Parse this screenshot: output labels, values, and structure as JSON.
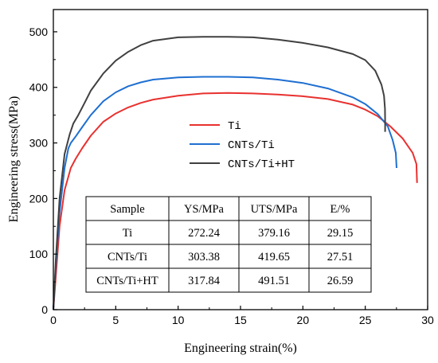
{
  "chart_data": {
    "type": "line",
    "xlabel": "Engineering strain(%)",
    "ylabel": "Engineering stress(MPa)",
    "xlim": [
      0,
      30
    ],
    "ylim": [
      0,
      540
    ],
    "xticks": [
      0,
      5,
      10,
      15,
      20,
      25,
      30
    ],
    "yticks": [
      0,
      100,
      200,
      300,
      400,
      500
    ],
    "grid": false,
    "legend_position": "center-right",
    "series": [
      {
        "name": "Ti",
        "color": "#e8312f",
        "x": [
          0,
          0.2,
          0.5,
          0.9,
          1.4,
          1.8,
          2.3,
          3,
          4,
          5,
          6,
          7,
          8,
          10,
          12,
          14,
          16,
          18,
          20,
          22,
          24,
          25,
          26,
          27,
          28,
          28.8,
          29.1,
          29.15
        ],
        "y": [
          0,
          60,
          150,
          215,
          255,
          272,
          290,
          313,
          338,
          353,
          364,
          372,
          378,
          385,
          389,
          390,
          389,
          387,
          384,
          379,
          369,
          360,
          348,
          330,
          308,
          282,
          262,
          228
        ]
      },
      {
        "name": "CNTs/Ti",
        "color": "#1f6fd1",
        "x": [
          0,
          0.2,
          0.5,
          0.9,
          1.2,
          1.4,
          1.8,
          2.3,
          3,
          4,
          5,
          6,
          7,
          8,
          10,
          12,
          14,
          16,
          18,
          20,
          22,
          24,
          25,
          26,
          26.8,
          27.2,
          27.45,
          27.51
        ],
        "y": [
          0,
          80,
          175,
          255,
          290,
          300,
          312,
          328,
          350,
          375,
          391,
          402,
          409,
          414,
          418,
          419,
          419,
          418,
          414,
          408,
          398,
          382,
          370,
          352,
          330,
          305,
          282,
          255
        ]
      },
      {
        "name": "CNTs/Ti+HT",
        "color": "#404040",
        "x": [
          0,
          0.2,
          0.5,
          0.9,
          1.3,
          1.6,
          2,
          2.5,
          3,
          4,
          5,
          6,
          7,
          8,
          10,
          12,
          14,
          16,
          18,
          20,
          22,
          24,
          25,
          25.8,
          26.3,
          26.5,
          26.58,
          26.59,
          26.59
        ],
        "y": [
          0,
          90,
          200,
          280,
          315,
          335,
          350,
          372,
          394,
          425,
          448,
          464,
          476,
          484,
          490,
          491,
          491,
          490,
          486,
          480,
          472,
          460,
          449,
          430,
          405,
          385,
          362,
          340,
          320
        ]
      }
    ],
    "table": {
      "headers": [
        "Sample",
        "YS/MPa",
        "UTS/MPa",
        "E/%"
      ],
      "rows": [
        [
          "Ti",
          "272.24",
          "379.16",
          "29.15"
        ],
        [
          "CNTs/Ti",
          "303.38",
          "419.65",
          "27.51"
        ],
        [
          "CNTs/Ti+HT",
          "317.84",
          "491.51",
          "26.59"
        ]
      ]
    }
  }
}
